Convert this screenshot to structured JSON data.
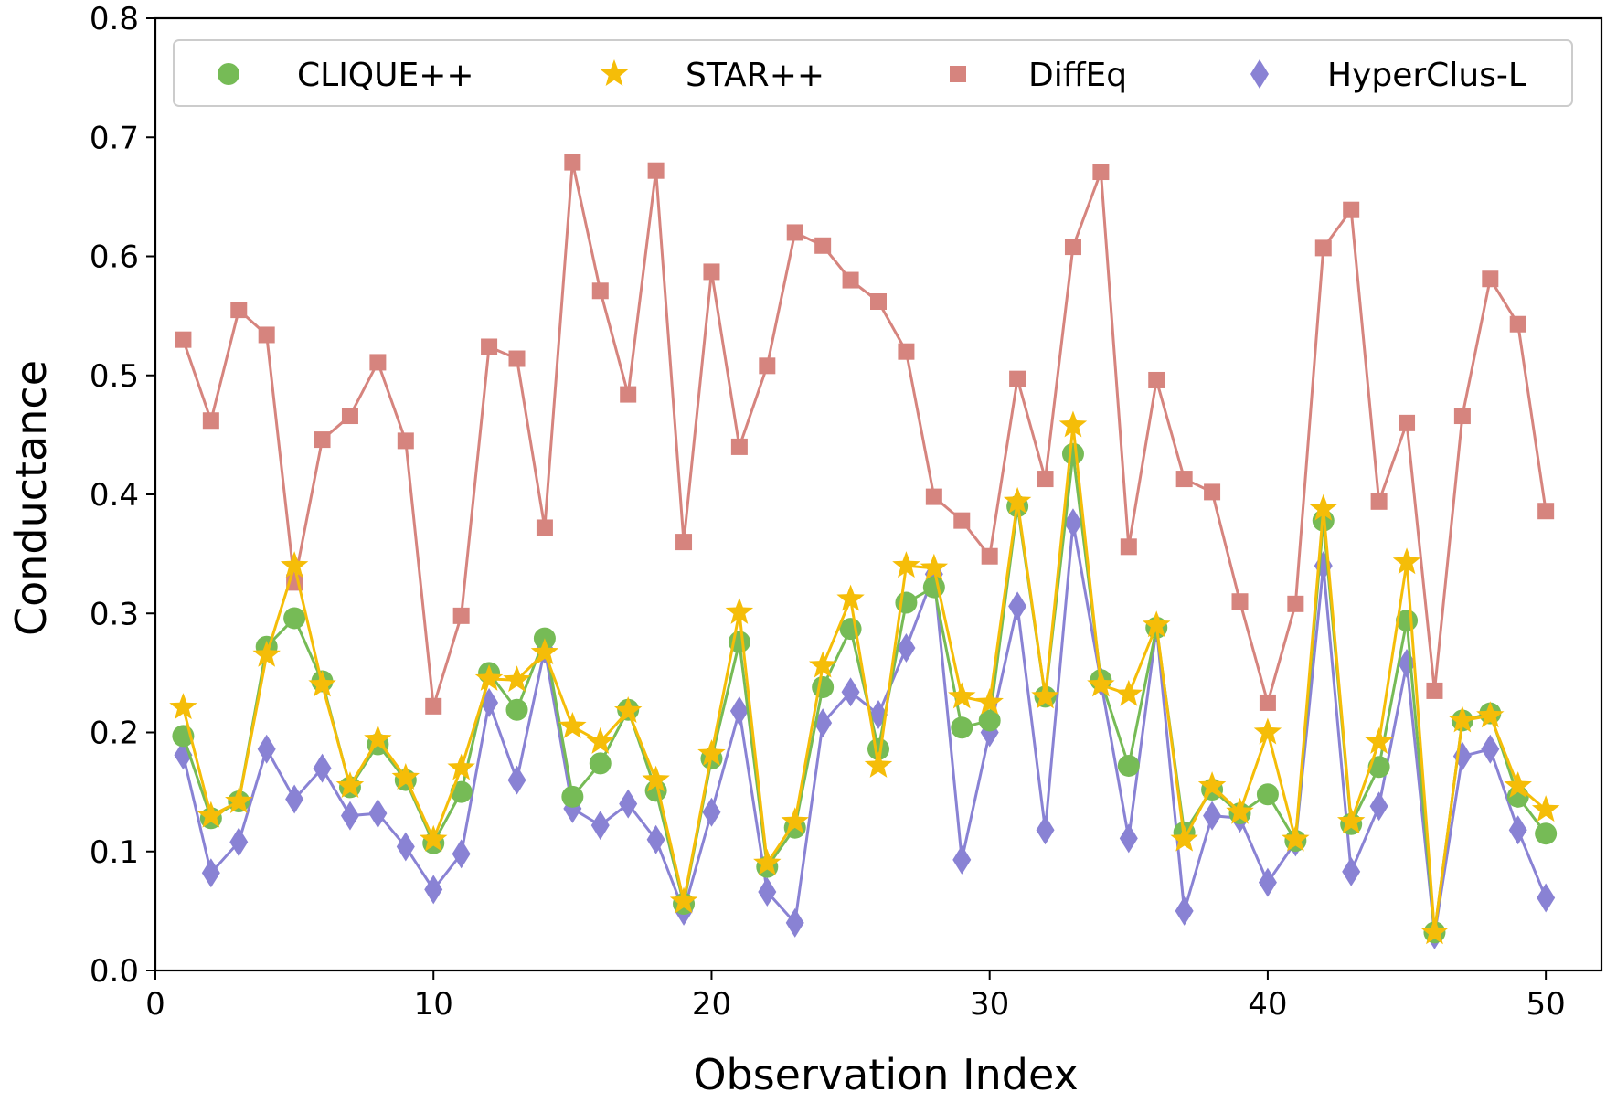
{
  "chart_data": {
    "type": "line",
    "title": "",
    "xlabel": "Observation Index",
    "ylabel": "Conductance",
    "xlim": [
      0,
      52
    ],
    "ylim": [
      0.0,
      0.8
    ],
    "xticks": [
      0,
      10,
      20,
      30,
      40,
      50
    ],
    "yticks": [
      0.0,
      0.1,
      0.2,
      0.3,
      0.4,
      0.5,
      0.6,
      0.7,
      0.8
    ],
    "xtick_labels": [
      "0",
      "10",
      "20",
      "30",
      "40",
      "50"
    ],
    "ytick_labels": [
      "0.0",
      "0.1",
      "0.2",
      "0.3",
      "0.4",
      "0.5",
      "0.6",
      "0.7",
      "0.8"
    ],
    "grid": false,
    "legend_location": "top",
    "x": [
      1,
      2,
      3,
      4,
      5,
      6,
      7,
      8,
      9,
      10,
      11,
      12,
      13,
      14,
      15,
      16,
      17,
      18,
      19,
      20,
      21,
      22,
      23,
      24,
      25,
      26,
      27,
      28,
      29,
      30,
      31,
      32,
      33,
      34,
      35,
      36,
      37,
      38,
      39,
      40,
      41,
      42,
      43,
      44,
      45,
      46,
      47,
      48,
      49,
      50
    ],
    "series": [
      {
        "name": "DiffEq",
        "color": "#d6847e",
        "marker": "square",
        "values": [
          0.53,
          0.462,
          0.555,
          0.534,
          0.326,
          0.446,
          0.466,
          0.511,
          0.445,
          0.222,
          0.298,
          0.524,
          0.514,
          0.372,
          0.679,
          0.571,
          0.484,
          0.672,
          0.36,
          0.587,
          0.44,
          0.508,
          0.62,
          0.609,
          0.58,
          0.562,
          0.52,
          0.398,
          0.378,
          0.348,
          0.497,
          0.413,
          0.608,
          0.671,
          0.356,
          0.496,
          0.413,
          0.402,
          0.31,
          0.225,
          0.308,
          0.607,
          0.639,
          0.394,
          0.46,
          0.235,
          0.466,
          0.581,
          0.543,
          0.386
        ]
      },
      {
        "name": "HyperClus-L",
        "color": "#8982d4",
        "marker": "diamond",
        "values": [
          0.181,
          0.082,
          0.108,
          0.186,
          0.144,
          0.17,
          0.13,
          0.132,
          0.104,
          0.068,
          0.098,
          0.225,
          0.16,
          0.27,
          0.136,
          0.122,
          0.14,
          0.11,
          0.05,
          0.133,
          0.218,
          0.066,
          0.04,
          0.208,
          0.234,
          0.215,
          0.271,
          0.333,
          0.093,
          0.2,
          0.306,
          0.118,
          0.376,
          0.243,
          0.111,
          0.288,
          0.05,
          0.13,
          0.128,
          0.074,
          0.108,
          0.34,
          0.083,
          0.138,
          0.258,
          0.03,
          0.18,
          0.186,
          0.118,
          0.061
        ]
      },
      {
        "name": "CLIQUE++",
        "color": "#76bb56",
        "marker": "circle",
        "values": [
          0.197,
          0.128,
          0.142,
          0.272,
          0.296,
          0.243,
          0.154,
          0.19,
          0.16,
          0.107,
          0.15,
          0.25,
          0.219,
          0.279,
          0.146,
          0.174,
          0.219,
          0.151,
          0.056,
          0.178,
          0.276,
          0.087,
          0.12,
          0.238,
          0.287,
          0.186,
          0.309,
          0.322,
          0.204,
          0.21,
          0.39,
          0.23,
          0.434,
          0.244,
          0.172,
          0.288,
          0.116,
          0.152,
          0.132,
          0.148,
          0.109,
          0.378,
          0.123,
          0.171,
          0.294,
          0.032,
          0.21,
          0.216,
          0.146,
          0.115
        ]
      },
      {
        "name": "STAR++",
        "color": "#f5bd08",
        "marker": "star",
        "values": [
          0.221,
          0.13,
          0.142,
          0.265,
          0.34,
          0.24,
          0.155,
          0.194,
          0.162,
          0.11,
          0.17,
          0.245,
          0.244,
          0.267,
          0.205,
          0.192,
          0.218,
          0.16,
          0.058,
          0.182,
          0.301,
          0.09,
          0.125,
          0.256,
          0.312,
          0.172,
          0.34,
          0.338,
          0.23,
          0.225,
          0.394,
          0.23,
          0.458,
          0.24,
          0.232,
          0.29,
          0.11,
          0.155,
          0.133,
          0.2,
          0.11,
          0.388,
          0.125,
          0.192,
          0.343,
          0.032,
          0.21,
          0.214,
          0.155,
          0.135
        ]
      }
    ],
    "legend": [
      {
        "label": "CLIQUE++",
        "series": "CLIQUE++"
      },
      {
        "label": "STAR++",
        "series": "STAR++"
      },
      {
        "label": "DiffEq",
        "series": "DiffEq"
      },
      {
        "label": "HyperClus-L",
        "series": "HyperClus-L"
      }
    ]
  }
}
